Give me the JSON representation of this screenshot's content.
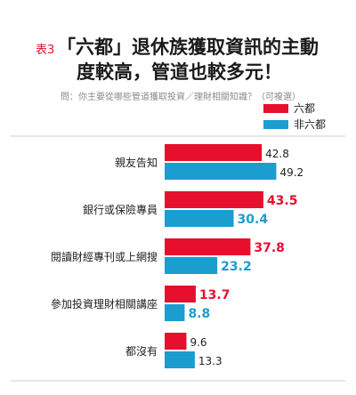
{
  "header": {
    "label": "表3",
    "title_line1": "「六都」退休族獲取資訊的主動",
    "title_line2": "度較高，管道也較多元！",
    "subtitle": "問：你主要從哪些管道獲取投資／理財相關知識？（可複選）"
  },
  "chart_data": {
    "type": "bar",
    "orientation": "horizontal",
    "categories": [
      "親友告知",
      "銀行或保險專員",
      "閱讀財經專刊或上網搜",
      "參加投資理財相關講座",
      "都沒有"
    ],
    "series": [
      {
        "name": "六都",
        "values": [
          42.8,
          43.5,
          37.8,
          13.7,
          9.6
        ],
        "color": "#e60f2d"
      },
      {
        "name": "非六都",
        "values": [
          49.2,
          30.4,
          23.2,
          8.8,
          13.3
        ],
        "color": "#1c9dd0"
      }
    ],
    "highlight": [
      {
        "category": "銀行或保險專員",
        "series": "六都",
        "color": "#e60f2d"
      },
      {
        "category": "銀行或保險專員",
        "series": "非六都",
        "color": "#1c9dd0"
      },
      {
        "category": "閱讀財經專刊或上網搜",
        "series": "六都",
        "color": "#e60f2d"
      },
      {
        "category": "閱讀財經專刊或上網搜",
        "series": "非六都",
        "color": "#1c9dd0"
      },
      {
        "category": "參加投資理財相關講座",
        "series": "六都",
        "color": "#e60f2d"
      },
      {
        "category": "參加投資理財相關講座",
        "series": "非六都",
        "color": "#1c9dd0"
      }
    ],
    "xlim": [
      0,
      60
    ],
    "legend_position": "top-right",
    "grid": false,
    "unit": "%"
  }
}
